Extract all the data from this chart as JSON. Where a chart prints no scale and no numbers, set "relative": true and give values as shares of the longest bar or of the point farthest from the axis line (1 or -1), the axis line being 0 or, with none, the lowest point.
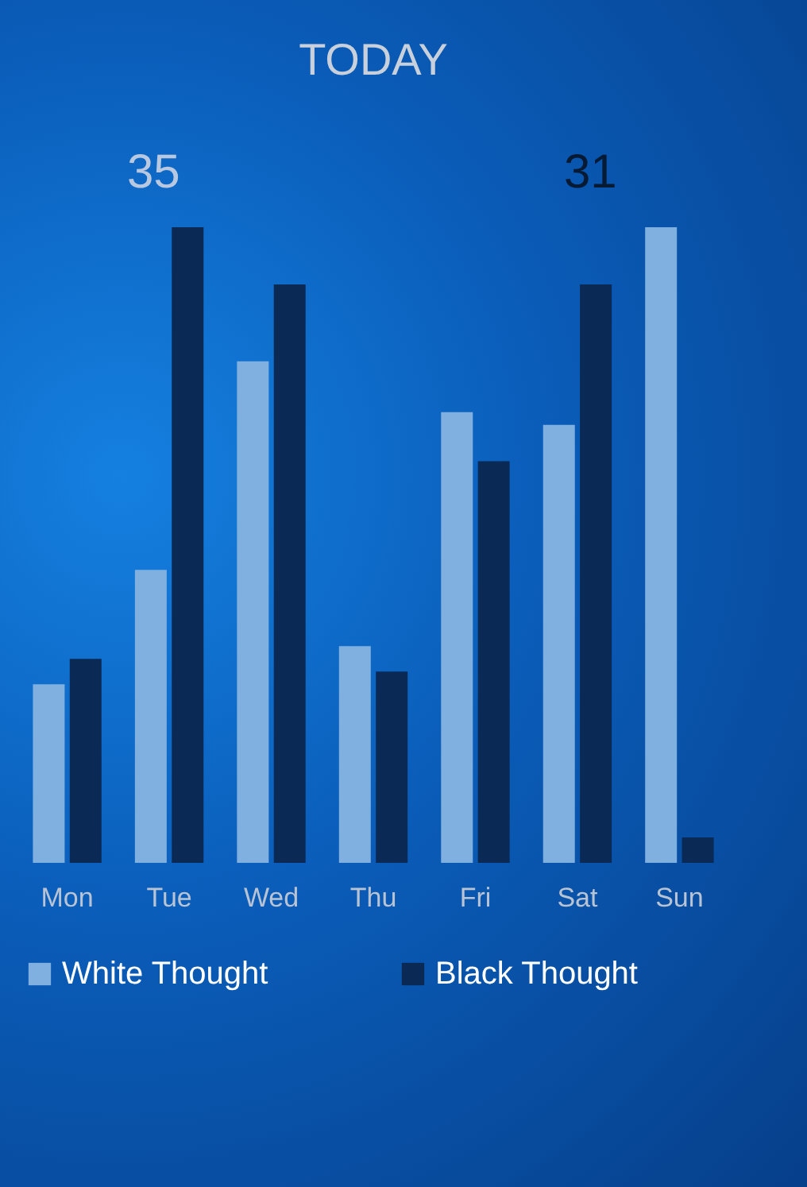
{
  "chart_data": {
    "type": "bar",
    "title": "TODAY",
    "relative": true,
    "legend": "bottom",
    "categories": [
      "Mon",
      "Tue",
      "Wed",
      "Thu",
      "Fri",
      "Sat",
      "Sun"
    ],
    "series": [
      {
        "name": "White Thought",
        "color": "#80b0e0",
        "values": [
          0.281,
          0.461,
          0.789,
          0.341,
          0.709,
          0.689,
          1
        ]
      },
      {
        "name": "Black Thought",
        "color": "#0a2a55",
        "values": [
          0.321,
          1,
          0.91,
          0.301,
          0.632,
          0.91,
          0.04
        ]
      }
    ],
    "annotations": [
      "35",
      "31"
    ]
  }
}
